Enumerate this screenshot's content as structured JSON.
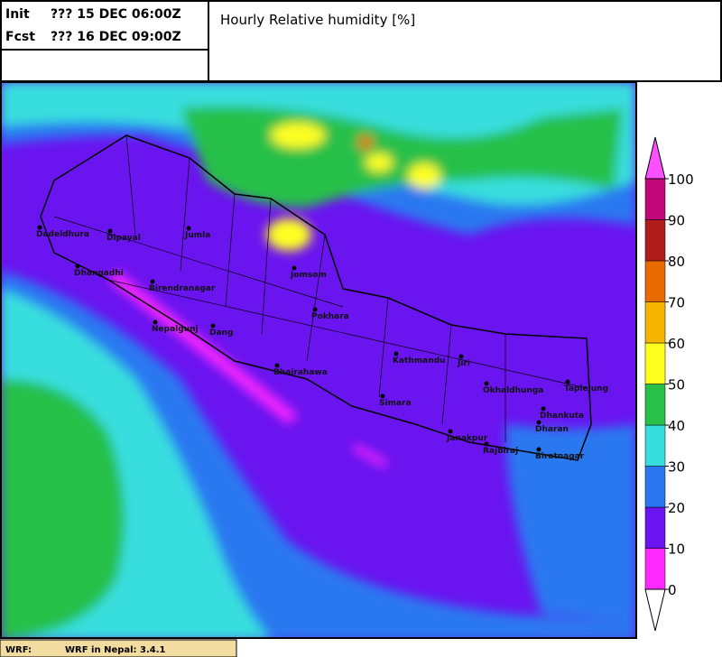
{
  "header": {
    "init_label": "Init",
    "init_time": "??? 15 DEC 06:00Z",
    "fcst_label": "Fcst",
    "fcst_time": "??? 16 DEC 09:00Z",
    "title": "Hourly Relative humidity [%]"
  },
  "colorbar": {
    "ticks": [
      0,
      10,
      20,
      30,
      40,
      50,
      60,
      70,
      80,
      90,
      100
    ],
    "colors": [
      "#ff28ff",
      "#6a14f0",
      "#2a78f0",
      "#38dede",
      "#28c048",
      "#ffff20",
      "#f4b400",
      "#e86a00",
      "#b01c1c",
      "#c0087a"
    ],
    "over_color": "#ff50ff",
    "under_color": "#ffffff"
  },
  "cities": [
    "Dadeldhura",
    "Dipayal",
    "Jumla",
    "Dhangadhi",
    "Birendranagar",
    "Jomsom",
    "Nepalgunj",
    "Dang",
    "Pokhara",
    "Bhairahawa",
    "Kathmandu",
    "Jiri",
    "Okhaldhunga",
    "Taplejung",
    "Simara",
    "Dhankuta",
    "Dharan",
    "Janakpur",
    "Rajbiraj",
    "Biratnagar"
  ],
  "footer": {
    "label": "WRF:",
    "text": "WRF in Nepal: 3.4.1"
  }
}
